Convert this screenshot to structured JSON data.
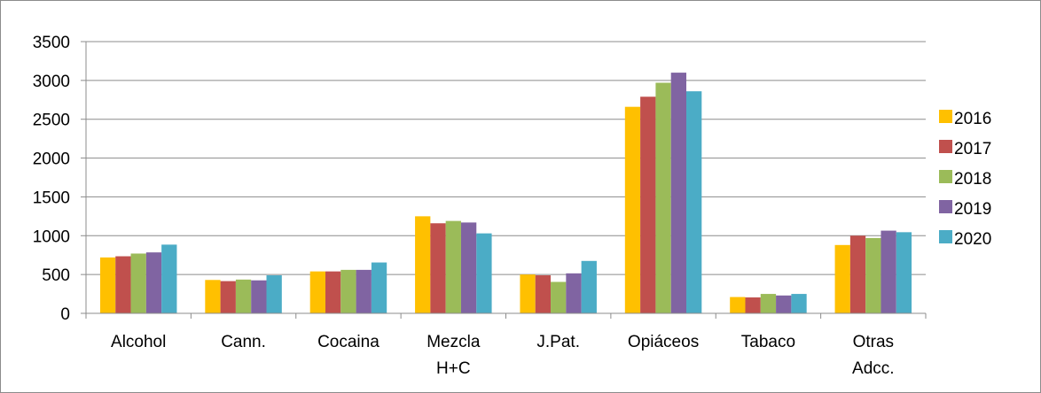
{
  "chart_data": {
    "type": "bar",
    "categories": [
      [
        "Alcohol"
      ],
      [
        "Cann."
      ],
      [
        "Cocaina"
      ],
      [
        "Mezcla",
        "H+C"
      ],
      [
        "J.Pat."
      ],
      [
        "Opiáceos"
      ],
      [
        "Tabaco"
      ],
      [
        "Otras",
        "Adcc."
      ]
    ],
    "series": [
      {
        "name": "2016",
        "color": "#FFC000",
        "values": [
          720,
          430,
          540,
          1250,
          500,
          2660,
          210,
          880
        ]
      },
      {
        "name": "2017",
        "color": "#C0504D",
        "values": [
          735,
          415,
          540,
          1160,
          490,
          2790,
          205,
          1000
        ]
      },
      {
        "name": "2018",
        "color": "#9BBB59",
        "values": [
          770,
          435,
          560,
          1190,
          405,
          2970,
          250,
          970
        ]
      },
      {
        "name": "2019",
        "color": "#8064A2",
        "values": [
          785,
          425,
          560,
          1170,
          515,
          3100,
          230,
          1065
        ]
      },
      {
        "name": "2020",
        "color": "#4BACC6",
        "values": [
          885,
          490,
          655,
          1030,
          675,
          2860,
          250,
          1045
        ]
      }
    ],
    "ylim": [
      0,
      3500
    ],
    "yticks": [
      0,
      500,
      1000,
      1500,
      2000,
      2500,
      3000,
      3500
    ],
    "grid": true,
    "legend_position": "right"
  }
}
